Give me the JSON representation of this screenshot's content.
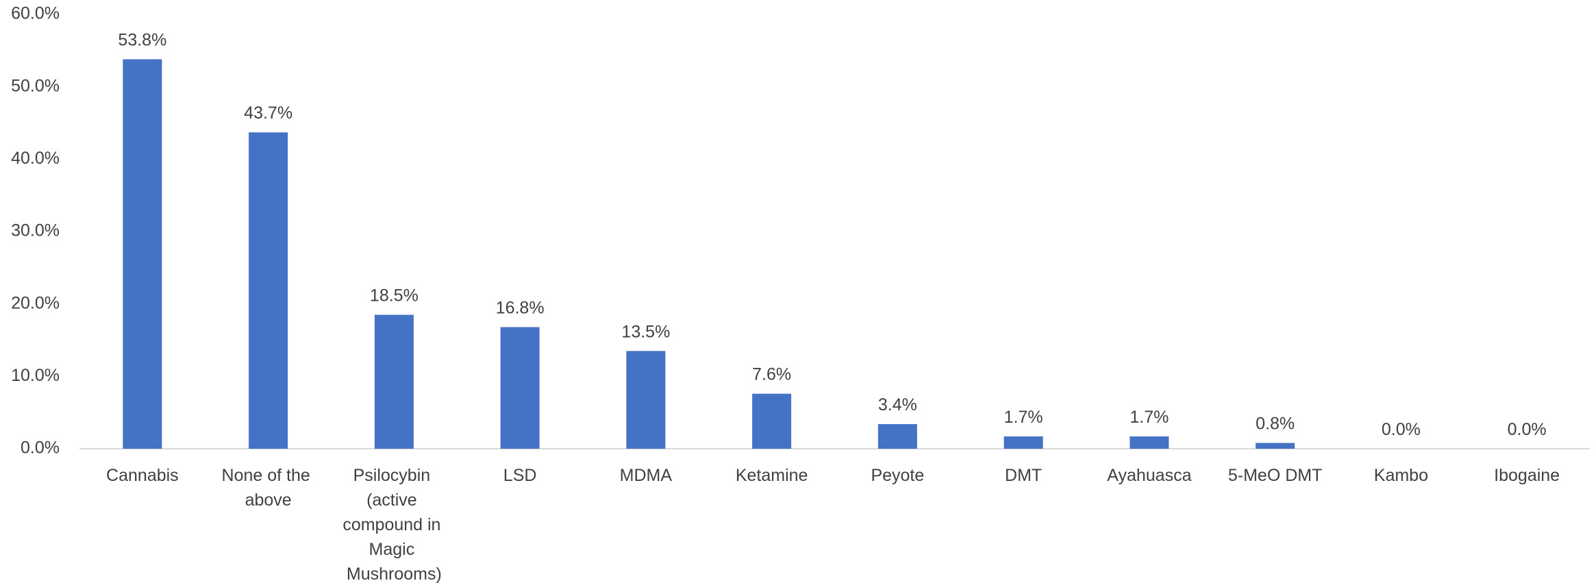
{
  "chart_data": {
    "type": "bar",
    "categories": [
      "Cannabis",
      "None of the above",
      "Psilocybin (active compound in Magic Mushrooms)",
      "LSD",
      "MDMA",
      "Ketamine",
      "Peyote",
      "DMT",
      "Ayahuasca",
      "5-MeO DMT",
      "Kambo",
      "Ibogaine"
    ],
    "values": [
      53.8,
      43.7,
      18.5,
      16.8,
      13.5,
      7.6,
      3.4,
      1.7,
      1.7,
      0.8,
      0.0,
      0.0
    ],
    "value_labels": [
      "53.8%",
      "43.7%",
      "18.5%",
      "16.8%",
      "13.5%",
      "7.6%",
      "3.4%",
      "1.7%",
      "1.7%",
      "0.8%",
      "0.0%",
      "0.0%"
    ],
    "color": "#4472c4",
    "ylim": [
      0,
      60
    ],
    "yticks": [
      {
        "value": 0,
        "label": "0.0%"
      },
      {
        "value": 10,
        "label": "10.0%"
      },
      {
        "value": 20,
        "label": "20.0%"
      },
      {
        "value": 30,
        "label": "30.0%"
      },
      {
        "value": 40,
        "label": "40.0%"
      },
      {
        "value": 50,
        "label": "50.0%"
      },
      {
        "value": 60,
        "label": "60.0%"
      }
    ],
    "grid": false
  }
}
